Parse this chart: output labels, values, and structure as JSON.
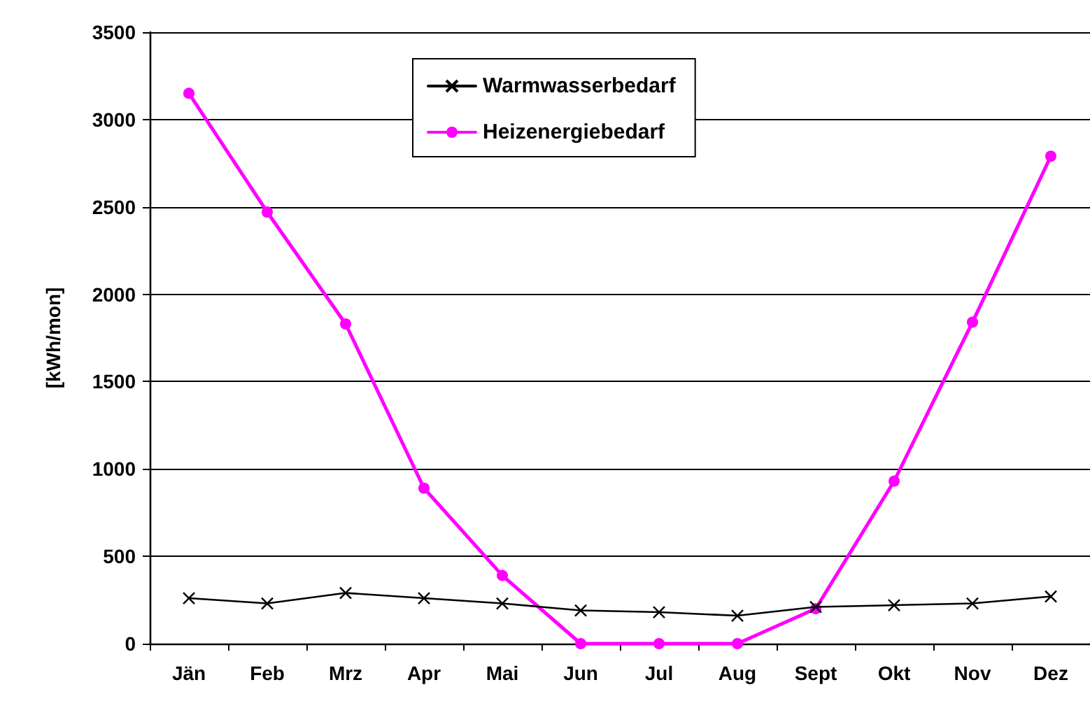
{
  "chart_data": {
    "type": "line",
    "ylabel": "[kWh/mon]",
    "categories": [
      "Jän",
      "Feb",
      "Mrz",
      "Apr",
      "Mai",
      "Jun",
      "Jul",
      "Aug",
      "Sept",
      "Okt",
      "Nov",
      "Dez"
    ],
    "series": [
      {
        "name": "Warmwasserbedarf",
        "color": "#000000",
        "marker": "cross",
        "values": [
          260,
          230,
          290,
          260,
          230,
          190,
          180,
          160,
          210,
          220,
          230,
          270
        ]
      },
      {
        "name": "Heizenergiebedarf",
        "color": "#ff00ff",
        "marker": "circle",
        "values": [
          3150,
          2470,
          1830,
          890,
          390,
          0,
          0,
          0,
          200,
          930,
          1840,
          2790
        ]
      }
    ],
    "ylim": [
      0,
      3500
    ],
    "yticks": [
      0,
      500,
      1000,
      1500,
      2000,
      2500,
      3000,
      3500
    ],
    "grid": "y",
    "legend": "top",
    "line_style": "solid"
  }
}
